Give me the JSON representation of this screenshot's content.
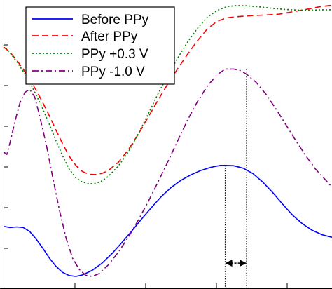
{
  "chart_data": {
    "type": "line",
    "title": "",
    "xlabel": "",
    "ylabel": "",
    "xlim": [
      0,
      1
    ],
    "ylim": [
      0,
      1
    ],
    "grid": false,
    "legend": {
      "placement": "top-left"
    },
    "series": [
      {
        "name": "Before PPy",
        "color": "#0000ff",
        "dash": "solid",
        "points": [
          [
            0.0,
            0.213
          ],
          [
            0.02,
            0.209
          ],
          [
            0.04,
            0.211
          ],
          [
            0.06,
            0.209
          ],
          [
            0.08,
            0.195
          ],
          [
            0.1,
            0.168
          ],
          [
            0.12,
            0.136
          ],
          [
            0.14,
            0.102
          ],
          [
            0.16,
            0.074
          ],
          [
            0.18,
            0.053
          ],
          [
            0.2,
            0.042
          ],
          [
            0.22,
            0.039
          ],
          [
            0.24,
            0.044
          ],
          [
            0.27,
            0.06
          ],
          [
            0.3,
            0.085
          ],
          [
            0.33,
            0.118
          ],
          [
            0.36,
            0.156
          ],
          [
            0.39,
            0.196
          ],
          [
            0.42,
            0.238
          ],
          [
            0.45,
            0.278
          ],
          [
            0.48,
            0.316
          ],
          [
            0.51,
            0.348
          ],
          [
            0.54,
            0.373
          ],
          [
            0.57,
            0.392
          ],
          [
            0.6,
            0.407
          ],
          [
            0.63,
            0.418
          ],
          [
            0.66,
            0.425
          ],
          [
            0.675,
            0.425
          ],
          [
            0.7,
            0.424
          ],
          [
            0.73,
            0.415
          ],
          [
            0.76,
            0.396
          ],
          [
            0.79,
            0.366
          ],
          [
            0.82,
            0.33
          ],
          [
            0.85,
            0.29
          ],
          [
            0.88,
            0.252
          ],
          [
            0.91,
            0.222
          ],
          [
            0.94,
            0.199
          ],
          [
            0.97,
            0.184
          ],
          [
            1.0,
            0.175
          ]
        ]
      },
      {
        "name": "After PPy",
        "color": "#ff0000",
        "dash": "dashed",
        "points": [
          [
            0.0,
            0.837
          ],
          [
            0.02,
            0.818
          ],
          [
            0.04,
            0.791
          ],
          [
            0.06,
            0.76
          ],
          [
            0.08,
            0.724
          ],
          [
            0.1,
            0.685
          ],
          [
            0.12,
            0.642
          ],
          [
            0.14,
            0.596
          ],
          [
            0.16,
            0.547
          ],
          [
            0.18,
            0.5
          ],
          [
            0.2,
            0.457
          ],
          [
            0.22,
            0.425
          ],
          [
            0.24,
            0.404
          ],
          [
            0.26,
            0.394
          ],
          [
            0.28,
            0.393
          ],
          [
            0.3,
            0.397
          ],
          [
            0.32,
            0.408
          ],
          [
            0.35,
            0.436
          ],
          [
            0.38,
            0.479
          ],
          [
            0.41,
            0.533
          ],
          [
            0.44,
            0.592
          ],
          [
            0.47,
            0.651
          ],
          [
            0.5,
            0.708
          ],
          [
            0.53,
            0.761
          ],
          [
            0.56,
            0.811
          ],
          [
            0.59,
            0.858
          ],
          [
            0.62,
            0.899
          ],
          [
            0.65,
            0.926
          ],
          [
            0.68,
            0.938
          ],
          [
            0.72,
            0.943
          ],
          [
            0.76,
            0.946
          ],
          [
            0.8,
            0.948
          ],
          [
            0.84,
            0.951
          ],
          [
            0.88,
            0.959
          ],
          [
            0.92,
            0.967
          ],
          [
            0.96,
            0.976
          ],
          [
            1.0,
            0.982
          ]
        ]
      },
      {
        "name": "PPy +0.3 V",
        "color": "#008000",
        "dash": "dotted",
        "points": [
          [
            0.0,
            0.843
          ],
          [
            0.02,
            0.816
          ],
          [
            0.04,
            0.786
          ],
          [
            0.06,
            0.752
          ],
          [
            0.08,
            0.713
          ],
          [
            0.1,
            0.669
          ],
          [
            0.12,
            0.62
          ],
          [
            0.14,
            0.566
          ],
          [
            0.16,
            0.51
          ],
          [
            0.18,
            0.458
          ],
          [
            0.2,
            0.412
          ],
          [
            0.22,
            0.382
          ],
          [
            0.24,
            0.367
          ],
          [
            0.26,
            0.361
          ],
          [
            0.28,
            0.362
          ],
          [
            0.3,
            0.371
          ],
          [
            0.32,
            0.388
          ],
          [
            0.35,
            0.423
          ],
          [
            0.38,
            0.472
          ],
          [
            0.41,
            0.534
          ],
          [
            0.44,
            0.603
          ],
          [
            0.47,
            0.673
          ],
          [
            0.5,
            0.738
          ],
          [
            0.53,
            0.798
          ],
          [
            0.56,
            0.853
          ],
          [
            0.59,
            0.901
          ],
          [
            0.62,
            0.94
          ],
          [
            0.65,
            0.964
          ],
          [
            0.68,
            0.977
          ],
          [
            0.71,
            0.981
          ],
          [
            0.74,
            0.98
          ],
          [
            0.78,
            0.976
          ],
          [
            0.82,
            0.971
          ],
          [
            0.86,
            0.967
          ],
          [
            0.9,
            0.965
          ],
          [
            0.94,
            0.965
          ],
          [
            0.97,
            0.966
          ],
          [
            1.0,
            0.966
          ]
        ]
      },
      {
        "name": "PPy -1.0 V",
        "color": "#800080",
        "dash": "dashdot",
        "points": [
          [
            0.0,
            0.472
          ],
          [
            0.01,
            0.463
          ],
          [
            0.02,
            0.505
          ],
          [
            0.035,
            0.578
          ],
          [
            0.05,
            0.643
          ],
          [
            0.065,
            0.679
          ],
          [
            0.08,
            0.689
          ],
          [
            0.095,
            0.663
          ],
          [
            0.11,
            0.596
          ],
          [
            0.13,
            0.498
          ],
          [
            0.15,
            0.383
          ],
          [
            0.17,
            0.271
          ],
          [
            0.19,
            0.174
          ],
          [
            0.21,
            0.103
          ],
          [
            0.23,
            0.064
          ],
          [
            0.25,
            0.043
          ],
          [
            0.27,
            0.039
          ],
          [
            0.29,
            0.048
          ],
          [
            0.32,
            0.08
          ],
          [
            0.35,
            0.124
          ],
          [
            0.38,
            0.175
          ],
          [
            0.41,
            0.234
          ],
          [
            0.44,
            0.298
          ],
          [
            0.47,
            0.366
          ],
          [
            0.5,
            0.437
          ],
          [
            0.53,
            0.51
          ],
          [
            0.56,
            0.582
          ],
          [
            0.59,
            0.646
          ],
          [
            0.62,
            0.7
          ],
          [
            0.65,
            0.74
          ],
          [
            0.675,
            0.76
          ],
          [
            0.7,
            0.76
          ],
          [
            0.72,
            0.755
          ],
          [
            0.74,
            0.742
          ],
          [
            0.77,
            0.713
          ],
          [
            0.8,
            0.671
          ],
          [
            0.83,
            0.62
          ],
          [
            0.86,
            0.566
          ],
          [
            0.89,
            0.511
          ],
          [
            0.92,
            0.459
          ],
          [
            0.95,
            0.412
          ],
          [
            0.98,
            0.375
          ],
          [
            1.0,
            0.349
          ]
        ]
      }
    ],
    "markers": [
      {
        "x": 0.675,
        "y": 0.425,
        "series": "Before PPy"
      },
      {
        "x": 0.74,
        "y": 0.76,
        "series": "PPy -1.0 V"
      }
    ],
    "shift_arrow": {
      "x_from": 0.675,
      "x_to": 0.74,
      "y": 0.085
    }
  }
}
